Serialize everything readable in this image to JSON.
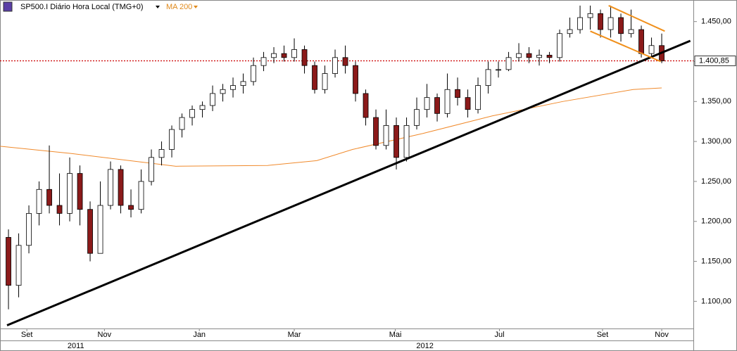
{
  "chart_data": {
    "type": "candlestick",
    "title": "SP500.I Diário Hora Local (TMG+0)",
    "xlim": [
      -0.83,
      67.1
    ],
    "ylim": [
      1066,
      1477
    ],
    "yticks": [
      {
        "value": 1100,
        "label": "1.100,00"
      },
      {
        "value": 1150,
        "label": "1.150,00"
      },
      {
        "value": 1200,
        "label": "1.200,00"
      },
      {
        "value": 1250,
        "label": "1.250,00"
      },
      {
        "value": 1300,
        "label": "1.300,00"
      },
      {
        "value": 1350,
        "label": "1.350,00"
      },
      {
        "value": 1400,
        "label": "1.400,00"
      },
      {
        "value": 1450,
        "label": "1.450,00"
      }
    ],
    "xticks": [
      {
        "value": 1.8,
        "label": "Set"
      },
      {
        "value": 9.4,
        "label": "Nov"
      },
      {
        "value": 18.7,
        "label": "Jan"
      },
      {
        "value": 28.0,
        "label": "Mar"
      },
      {
        "value": 37.9,
        "label": "Mai"
      },
      {
        "value": 48.1,
        "label": "Jul"
      },
      {
        "value": 58.2,
        "label": "Set"
      },
      {
        "value": 64.0,
        "label": "Nov"
      }
    ],
    "years": [
      {
        "value": 6.6,
        "label": "2011"
      },
      {
        "value": 40.8,
        "label": "2012"
      }
    ],
    "up_color": "#ffffff",
    "down_color": "#8b1a1a",
    "x": [
      0,
      1,
      2,
      3,
      4,
      5,
      6,
      7,
      8,
      9,
      10,
      11,
      12,
      13,
      14,
      15,
      16,
      17,
      18,
      19,
      20,
      21,
      22,
      23,
      24,
      25,
      26,
      27,
      28,
      29,
      30,
      31,
      32,
      33,
      34,
      35,
      36,
      37,
      38,
      39,
      40,
      41,
      42,
      43,
      44,
      45,
      46,
      47,
      48,
      49,
      50,
      51,
      52,
      53,
      54,
      55,
      56,
      57,
      58,
      59,
      60,
      61,
      62,
      63,
      64
    ],
    "open": [
      1180,
      1120,
      1170,
      1210,
      1240,
      1220,
      1210,
      1260,
      1215,
      1160,
      1220,
      1265,
      1220,
      1215,
      1250,
      1280,
      1290,
      1315,
      1330,
      1340,
      1345,
      1360,
      1365,
      1370,
      1375,
      1395,
      1405,
      1410,
      1405,
      1415,
      1395,
      1365,
      1385,
      1405,
      1395,
      1360,
      1330,
      1295,
      1320,
      1280,
      1320,
      1340,
      1355,
      1335,
      1365,
      1355,
      1340,
      1370,
      1390,
      1390,
      1405,
      1410,
      1405,
      1408,
      1405,
      1435,
      1440,
      1455,
      1460,
      1440,
      1455,
      1435,
      1440,
      1410,
      1420
    ],
    "high": [
      1190,
      1185,
      1220,
      1250,
      1295,
      1260,
      1280,
      1270,
      1225,
      1250,
      1275,
      1270,
      1240,
      1265,
      1290,
      1300,
      1320,
      1335,
      1345,
      1350,
      1370,
      1372,
      1380,
      1385,
      1405,
      1412,
      1418,
      1420,
      1429,
      1420,
      1400,
      1395,
      1415,
      1420,
      1400,
      1365,
      1340,
      1340,
      1330,
      1330,
      1355,
      1372,
      1360,
      1385,
      1380,
      1365,
      1380,
      1400,
      1400,
      1412,
      1423,
      1418,
      1415,
      1412,
      1440,
      1455,
      1470,
      1470,
      1465,
      1470,
      1460,
      1465,
      1445,
      1430,
      1435
    ],
    "low": [
      1090,
      1105,
      1160,
      1195,
      1210,
      1195,
      1200,
      1195,
      1150,
      1160,
      1215,
      1210,
      1205,
      1210,
      1245,
      1270,
      1280,
      1305,
      1320,
      1330,
      1338,
      1350,
      1355,
      1360,
      1370,
      1388,
      1398,
      1400,
      1400,
      1385,
      1360,
      1360,
      1380,
      1385,
      1350,
      1320,
      1290,
      1290,
      1265,
      1275,
      1315,
      1330,
      1325,
      1330,
      1345,
      1330,
      1335,
      1360,
      1380,
      1388,
      1400,
      1398,
      1395,
      1398,
      1400,
      1430,
      1435,
      1440,
      1430,
      1430,
      1425,
      1430,
      1405,
      1405,
      1398
    ],
    "close": [
      1120,
      1170,
      1210,
      1240,
      1220,
      1210,
      1260,
      1215,
      1160,
      1220,
      1265,
      1220,
      1215,
      1250,
      1280,
      1290,
      1315,
      1330,
      1340,
      1345,
      1360,
      1365,
      1370,
      1375,
      1395,
      1405,
      1410,
      1405,
      1415,
      1395,
      1365,
      1385,
      1405,
      1395,
      1360,
      1330,
      1295,
      1320,
      1280,
      1320,
      1340,
      1355,
      1335,
      1365,
      1355,
      1340,
      1370,
      1390,
      1390,
      1405,
      1410,
      1405,
      1408,
      1405,
      1435,
      1440,
      1455,
      1460,
      1440,
      1455,
      1435,
      1440,
      1410,
      1420,
      1400.85
    ],
    "ma": {
      "name": "MA 200",
      "color": "#f08a2c",
      "x": [
        -0.83,
        6.1,
        16.4,
        25.4,
        30.2,
        33.7,
        40.6,
        47.4,
        54.3,
        61.2,
        64.0
      ],
      "values": [
        1294,
        1285,
        1269,
        1270,
        1276,
        1290,
        1310,
        1332,
        1350,
        1365,
        1367
      ]
    },
    "trendlines": [
      {
        "color": "#000000",
        "x": [
          -0.14,
          66.8
        ],
        "y": [
          1070,
          1426
        ]
      },
      {
        "color": "#f0901c",
        "x": [
          58.8,
          64.3
        ],
        "y": [
          1470,
          1438
        ]
      },
      {
        "color": "#f0901c",
        "x": [
          57.0,
          63.9
        ],
        "y": [
          1438,
          1400
        ]
      }
    ],
    "last_price": {
      "value": 1400.85,
      "label": "1.400,85",
      "color": "#cc0000"
    }
  }
}
